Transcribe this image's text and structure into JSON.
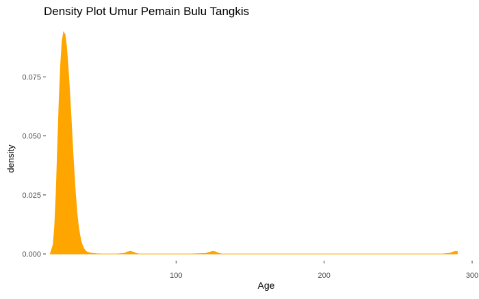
{
  "chart_data": {
    "type": "area",
    "title": "Density Plot Umur Pemain Bulu Tangkis",
    "xlabel": "Age",
    "ylabel": "density",
    "xlim": [
      12.5,
      300
    ],
    "ylim": [
      -0.002,
      0.096
    ],
    "x_ticks": [
      100,
      200,
      300
    ],
    "x_tick_labels": [
      "100",
      "200",
      "300"
    ],
    "y_ticks": [
      0.0,
      0.025,
      0.05,
      0.075
    ],
    "y_tick_labels": [
      "0.000",
      "0.025",
      "0.050",
      "0.075"
    ],
    "grid": false,
    "fill_color": "#FFA500",
    "series": [
      {
        "x": [
          15,
          17,
          18,
          19,
          20,
          21,
          22,
          23,
          24,
          25,
          26,
          27,
          28,
          29,
          30,
          31,
          32,
          33,
          34,
          35,
          36,
          37,
          38,
          39,
          40,
          42,
          44,
          46,
          50,
          55,
          60,
          65,
          67,
          69,
          71,
          73,
          75,
          80,
          90,
          100,
          110,
          120,
          123,
          125,
          127,
          129,
          131,
          140,
          160,
          180,
          200,
          220,
          240,
          260,
          280,
          285,
          287,
          289,
          290
        ],
        "y": [
          0.0,
          0.004,
          0.012,
          0.026,
          0.046,
          0.065,
          0.08,
          0.09,
          0.094,
          0.093,
          0.088,
          0.08,
          0.07,
          0.059,
          0.047,
          0.036,
          0.026,
          0.018,
          0.012,
          0.008,
          0.005,
          0.0032,
          0.002,
          0.0012,
          0.0008,
          0.0004,
          0.0002,
          0.0001,
          0.0,
          0.0,
          0.0,
          0.0002,
          0.0008,
          0.0011,
          0.0008,
          0.0002,
          0.0,
          0.0,
          0.0,
          0.0,
          0.0,
          0.0002,
          0.0008,
          0.0011,
          0.0008,
          0.0002,
          0.0,
          0.0,
          0.0,
          0.0,
          0.0,
          0.0,
          0.0,
          0.0,
          0.0,
          0.0003,
          0.0008,
          0.0011,
          0.001
        ]
      }
    ]
  }
}
